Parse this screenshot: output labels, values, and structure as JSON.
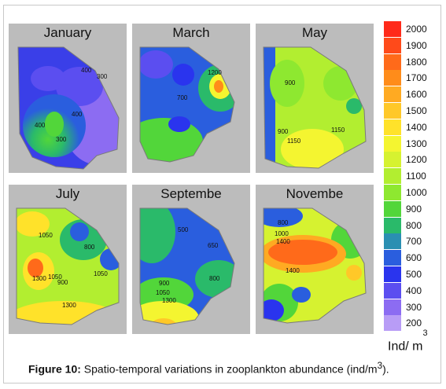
{
  "panels": [
    {
      "title": "January",
      "contours": [
        "400",
        "300",
        "400",
        "400",
        "300"
      ]
    },
    {
      "title": "March",
      "contours": [
        "1200",
        "700"
      ]
    },
    {
      "title": "May",
      "contours": [
        "900",
        "900",
        "1150",
        "1150"
      ]
    },
    {
      "title": "July",
      "contours": [
        "1050",
        "1300",
        "1050",
        "900",
        "1050",
        "800",
        "1300"
      ]
    },
    {
      "title": "Septembe",
      "contours": [
        "500",
        "650",
        "800",
        "900",
        "1050",
        "1300"
      ]
    },
    {
      "title": "Novembe",
      "contours": [
        "800",
        "1000",
        "1400",
        "1400"
      ]
    }
  ],
  "legend": {
    "ticks": [
      "2000",
      "1900",
      "1800",
      "1700",
      "1600",
      "1500",
      "1400",
      "1300",
      "1200",
      "1100",
      "1000",
      "900",
      "800",
      "700",
      "600",
      "500",
      "400",
      "300",
      "200"
    ],
    "colors": [
      "#ff2a1a",
      "#ff4a1a",
      "#ff6a1a",
      "#ff8c1a",
      "#ffaa22",
      "#ffc828",
      "#ffe22a",
      "#f4f530",
      "#d6f230",
      "#b2ee30",
      "#8ee830",
      "#52d63a",
      "#2aba6a",
      "#2a8fb2",
      "#2a5ede",
      "#2a34ee",
      "#5b4ef0",
      "#8c6cf2",
      "#b89cf6"
    ],
    "unit": "Ind/ m",
    "unit_sup": "3"
  },
  "caption": {
    "label": "Figure 10:",
    "text": " Spatio-temporal variations in zooplankton abundance (ind/m",
    "sup": "3",
    "end": ")."
  }
}
